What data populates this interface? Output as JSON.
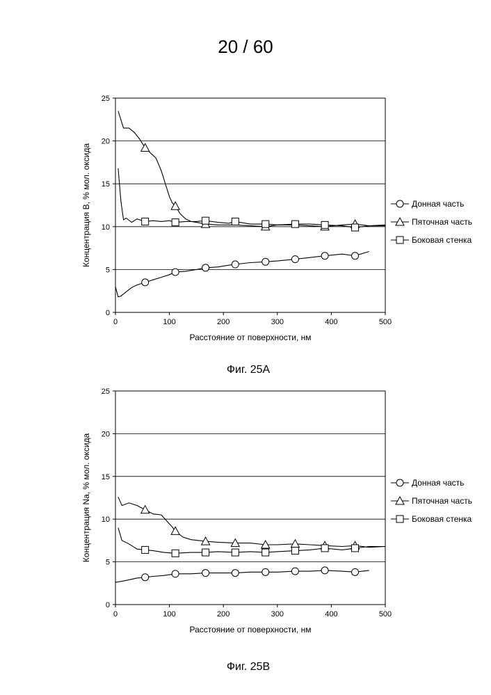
{
  "page": {
    "number_label": "20 / 60"
  },
  "chart_data": [
    {
      "type": "line",
      "caption": "Фиг. 25A",
      "xlabel": "Расстояние от поверхности, нм",
      "ylabel": "Концентрация В, % мол. оксида",
      "xlim": [
        0,
        500
      ],
      "ylim": [
        0,
        25
      ],
      "xticks": [
        0,
        100,
        200,
        300,
        400,
        500
      ],
      "yticks": [
        0,
        5,
        10,
        15,
        20,
        25
      ],
      "grid": "horizontal",
      "legend_position": "right",
      "series": [
        {
          "name": "Донная часть",
          "marker": "circle",
          "x": [
            0,
            5,
            10,
            20,
            30,
            40,
            55,
            70,
            85,
            100,
            111,
            130,
            150,
            167,
            190,
            210,
            222,
            250,
            278,
            300,
            333,
            360,
            388,
            420,
            444,
            470
          ],
          "y": [
            3.0,
            1.8,
            1.9,
            2.4,
            2.9,
            3.2,
            3.5,
            3.8,
            4.1,
            4.4,
            4.7,
            4.8,
            5.0,
            5.2,
            5.3,
            5.5,
            5.6,
            5.8,
            5.9,
            6.0,
            6.2,
            6.4,
            6.6,
            6.8,
            6.6,
            7.1
          ],
          "markers_at": [
            55,
            111,
            167,
            222,
            278,
            333,
            388,
            444
          ]
        },
        {
          "name": "Пяточная часть",
          "marker": "triangle",
          "x": [
            5,
            15,
            25,
            35,
            45,
            55,
            65,
            75,
            85,
            95,
            100,
            105,
            111,
            120,
            130,
            140,
            150,
            167,
            190,
            222,
            250,
            278,
            300,
            333,
            360,
            388,
            420,
            444,
            470,
            500
          ],
          "y": [
            23.5,
            21.5,
            21.5,
            21.0,
            20.2,
            19.2,
            18.6,
            18.0,
            16.5,
            14.5,
            13.5,
            12.8,
            12.4,
            11.5,
            10.9,
            10.6,
            10.5,
            10.3,
            10.2,
            10.2,
            10.1,
            10.0,
            10.2,
            10.2,
            10.1,
            10.0,
            10.2,
            10.3,
            10.1,
            10.1
          ],
          "markers_at": [
            55,
            111,
            167,
            278,
            388,
            444
          ]
        },
        {
          "name": "Боковая стенка",
          "marker": "square",
          "x": [
            5,
            10,
            15,
            20,
            30,
            40,
            55,
            70,
            85,
            100,
            111,
            130,
            150,
            167,
            190,
            210,
            222,
            250,
            278,
            300,
            333,
            360,
            388,
            420,
            444,
            470,
            500
          ],
          "y": [
            16.8,
            13.0,
            10.8,
            11.0,
            10.5,
            10.9,
            10.6,
            10.7,
            10.6,
            10.7,
            10.5,
            10.6,
            10.6,
            10.7,
            10.5,
            10.4,
            10.6,
            10.3,
            10.3,
            10.2,
            10.3,
            10.3,
            10.2,
            10.1,
            9.9,
            10.1,
            10.2
          ],
          "markers_at": [
            55,
            111,
            167,
            222,
            278,
            333,
            388,
            444
          ]
        }
      ]
    },
    {
      "type": "line",
      "caption": "Фиг. 25В",
      "xlabel": "Расстояние от поверхности, нм",
      "ylabel": "Концентрация Na, % мол. оксида",
      "xlim": [
        0,
        500
      ],
      "ylim": [
        0,
        25
      ],
      "xticks": [
        0,
        100,
        200,
        300,
        400,
        500
      ],
      "yticks": [
        0,
        5,
        10,
        15,
        20,
        25
      ],
      "grid": "horizontal",
      "legend_position": "right",
      "series": [
        {
          "name": "Донная часть",
          "marker": "circle",
          "x": [
            0,
            10,
            25,
            40,
            55,
            70,
            90,
            111,
            140,
            167,
            200,
            222,
            250,
            278,
            300,
            333,
            360,
            388,
            420,
            444,
            470
          ],
          "y": [
            2.6,
            2.7,
            2.9,
            3.1,
            3.2,
            3.3,
            3.4,
            3.6,
            3.6,
            3.7,
            3.7,
            3.7,
            3.8,
            3.8,
            3.8,
            3.9,
            3.9,
            4.0,
            3.9,
            3.8,
            4.0
          ],
          "markers_at": [
            55,
            111,
            167,
            222,
            278,
            333,
            388,
            444
          ]
        },
        {
          "name": "Пяточная часть",
          "marker": "triangle",
          "x": [
            5,
            12,
            25,
            40,
            55,
            70,
            85,
            95,
            105,
            111,
            125,
            140,
            167,
            190,
            222,
            250,
            278,
            300,
            333,
            360,
            388,
            420,
            444,
            470,
            500
          ],
          "y": [
            12.6,
            11.6,
            11.9,
            11.6,
            11.1,
            10.6,
            10.5,
            9.8,
            9.1,
            8.6,
            7.9,
            7.6,
            7.4,
            7.3,
            7.2,
            7.2,
            7.0,
            7.0,
            7.1,
            7.0,
            6.9,
            6.8,
            6.9,
            6.7,
            6.8
          ],
          "markers_at": [
            55,
            111,
            167,
            222,
            278,
            333,
            388,
            444
          ]
        },
        {
          "name": "Боковая стенка",
          "marker": "square",
          "x": [
            5,
            12,
            25,
            40,
            55,
            70,
            90,
            111,
            140,
            167,
            190,
            222,
            250,
            278,
            300,
            333,
            360,
            388,
            420,
            444,
            470,
            500
          ],
          "y": [
            9.0,
            7.5,
            7.1,
            6.5,
            6.4,
            6.3,
            6.1,
            6.0,
            6.1,
            6.1,
            6.2,
            6.1,
            6.2,
            6.1,
            6.2,
            6.3,
            6.4,
            6.6,
            6.4,
            6.6,
            6.8,
            6.8
          ],
          "markers_at": [
            55,
            111,
            167,
            222,
            278,
            333,
            388,
            444
          ]
        }
      ]
    }
  ]
}
